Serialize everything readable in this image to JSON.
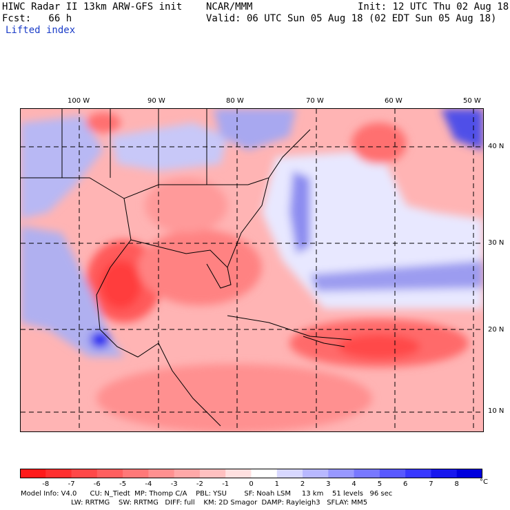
{
  "header": {
    "title": "HIWC Radar II 13km ARW-GFS init",
    "org": "NCAR/MMM",
    "init": "Init: 12 UTC Thu 02 Aug 18",
    "fcst": "Fcst:   66 h",
    "valid": "Valid: 06 UTC Sun 05 Aug 18 (02 EDT Sun 05 Aug 18)",
    "field": "Lifted index"
  },
  "map": {
    "lon_labels": [
      "100 W",
      "90 W",
      "80 W",
      "70 W",
      "60 W",
      "50 W"
    ],
    "lat_labels": [
      "40 N",
      "30 N",
      "20 N",
      "10 N"
    ]
  },
  "legend": {
    "unit": "°C",
    "ticks": [
      "-8",
      "-7",
      "-6",
      "-5",
      "-4",
      "-3",
      "-2",
      "-1",
      "0",
      "1",
      "2",
      "3",
      "4",
      "5",
      "6",
      "7",
      "8"
    ],
    "colors": [
      "#ff1a1a",
      "#ff3030",
      "#ff4848",
      "#ff5f5f",
      "#ff7878",
      "#ff9090",
      "#ffa8a8",
      "#ffc0c0",
      "#ffe0e0",
      "#ffffff",
      "#d8d8ff",
      "#b8b8ff",
      "#9898ff",
      "#7878ff",
      "#5858ff",
      "#3838ff",
      "#1818ee",
      "#0000dd"
    ]
  },
  "footer": {
    "line1": "Model Info: V4.0      CU: N_Tiedt  MP: Thomp C/A    PBL: YSU        SF: Noah LSM     13 km    51 levels   96 sec",
    "line2": "                       LW: RRTMG    SW: RRTMG   DIFF: full    KM: 2D Smagor  DAMP: Rayleigh3   SFLAY: MM5"
  }
}
